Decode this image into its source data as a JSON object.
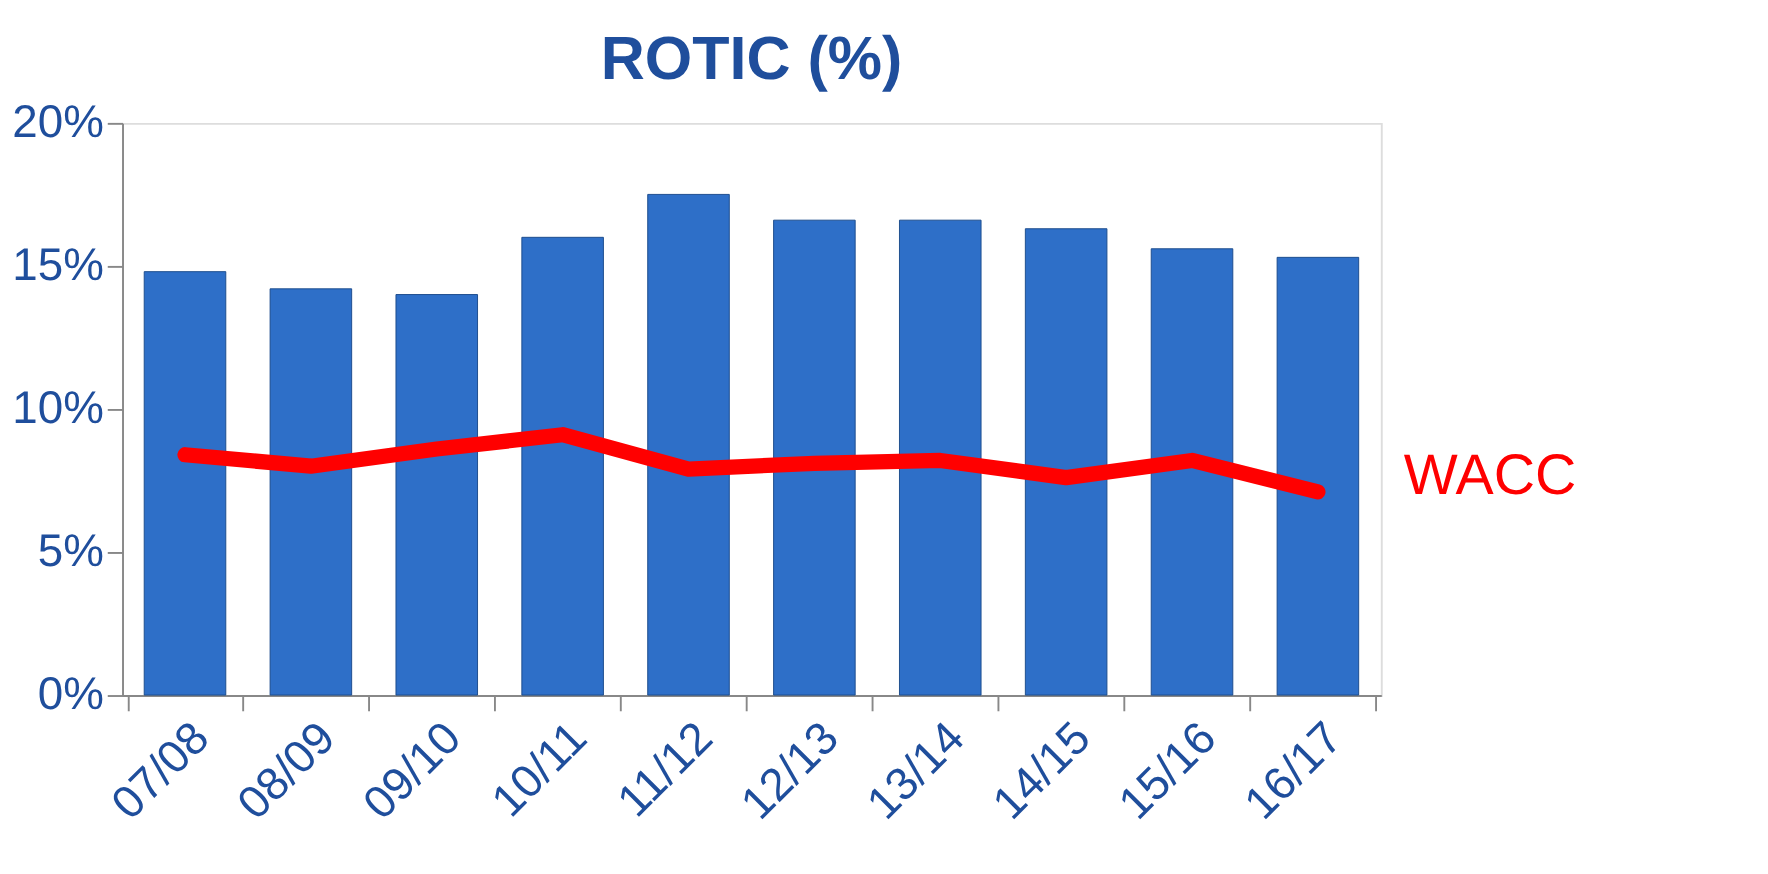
{
  "chart_data": {
    "type": "bar",
    "title": "ROTIC (%)",
    "categories": [
      "07/08",
      "08/09",
      "09/10",
      "10/11",
      "11/12",
      "12/13",
      "13/14",
      "14/15",
      "15/16",
      "16/17"
    ],
    "series": [
      {
        "color": "#2e6fc8",
        "values": [
          14.8,
          14.2,
          14.0,
          16.0,
          17.5,
          16.6,
          16.6,
          16.3,
          15.6,
          15.3
        ]
      },
      {
        "type": "line",
        "name": "WACC",
        "color": "#ff0000",
        "values": [
          8.4,
          8.0,
          8.6,
          9.1,
          7.9,
          8.1,
          8.2,
          7.6,
          8.2,
          7.1
        ]
      }
    ],
    "ylim": [
      0,
      20
    ],
    "yticks": [
      {
        "value": 0,
        "label": "0%"
      },
      {
        "value": 5,
        "label": "5%"
      },
      {
        "value": 10,
        "label": "10%"
      },
      {
        "value": 15,
        "label": "15%"
      },
      {
        "value": 20,
        "label": "20%"
      }
    ],
    "grid": false,
    "marker": "none",
    "line_style": "solid"
  }
}
